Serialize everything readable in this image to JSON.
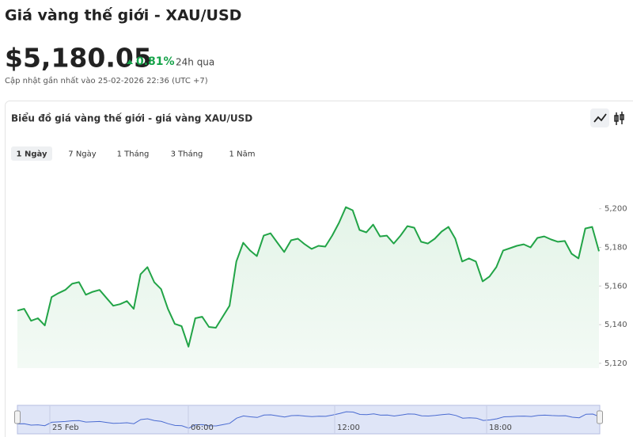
{
  "header": {
    "title": "Giá vàng thế giới - XAU/USD",
    "price": "$5,180.05",
    "change": "0.81%",
    "change_period": "24h qua",
    "updated": "Cập nhật gần nhất vào 25-02-2026 22:36 (UTC +7)"
  },
  "tabs": [
    "1 Ngày",
    "7 Ngày",
    "1 Tháng",
    "3 Tháng",
    "1 Năm"
  ],
  "chart_data": {
    "type": "line",
    "title": "Biểu đồ giá vàng thế giới - giá vàng XAU/USD",
    "color": "#22a447",
    "values": [
      5147.3,
      5148.2,
      5142.0,
      5143.3,
      5139.6,
      5154.3,
      5156.3,
      5158.0,
      5161.2,
      5162.0,
      5155.5,
      5157.0,
      5158.0,
      5153.9,
      5149.8,
      5150.6,
      5152.2,
      5148.2,
      5166.1,
      5169.8,
      5162.0,
      5158.4,
      5148.2,
      5140.4,
      5139.2,
      5128.6,
      5143.3,
      5144.1,
      5138.8,
      5138.4,
      5144.1,
      5149.8,
      5172.7,
      5182.4,
      5178.4,
      5175.5,
      5186.1,
      5187.3,
      5182.4,
      5177.6,
      5183.7,
      5184.5,
      5181.6,
      5179.2,
      5180.8,
      5180.4,
      5186.1,
      5192.7,
      5200.8,
      5199.2,
      5189.0,
      5187.8,
      5191.8,
      5185.7,
      5186.1,
      5182.0,
      5186.1,
      5191.0,
      5190.2,
      5182.9,
      5182.0,
      5184.5,
      5188.2,
      5190.6,
      5184.5,
      5172.7,
      5174.3,
      5172.7,
      5162.4,
      5164.9,
      5169.8,
      5178.4,
      5179.6,
      5180.8,
      5181.6,
      5180.0,
      5184.9,
      5185.7,
      5184.1,
      5182.9,
      5183.3,
      5176.7,
      5174.3,
      5189.8,
      5190.6,
      5178.0
    ],
    "ylim": [
      5117.5,
      5222
    ],
    "yticks": [
      {
        "value": 5120,
        "label": "5,120"
      },
      {
        "value": 5140,
        "label": "5,140"
      },
      {
        "value": 5160,
        "label": "5,160"
      },
      {
        "value": 5180,
        "label": "5,180"
      },
      {
        "value": 5200,
        "label": "5,200"
      }
    ],
    "navigator_labels": [
      "25 Feb",
      "06:00",
      "12:00",
      "18:00"
    ]
  }
}
